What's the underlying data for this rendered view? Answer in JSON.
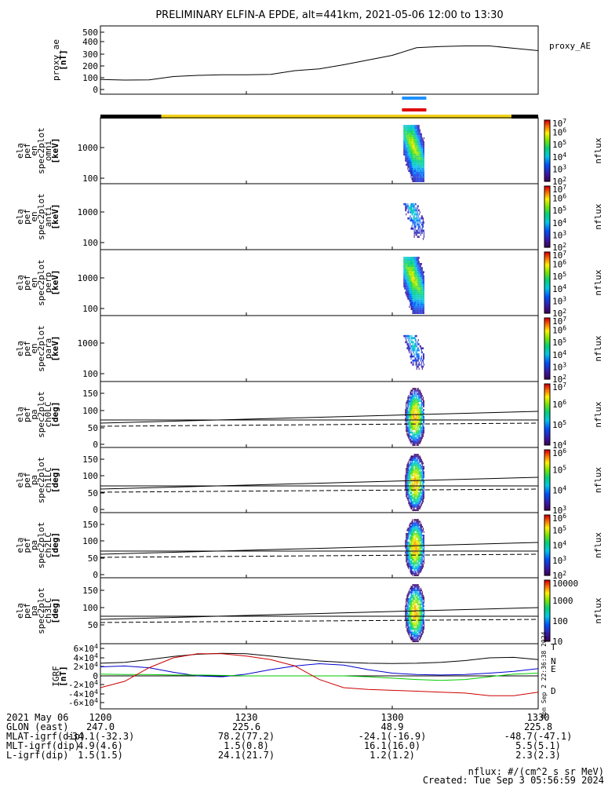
{
  "title": "PRELIMINARY ELFIN-A EPDE, alt=441km, 2021-05-06 12:00 to 13:30",
  "chart_data": {
    "type": "heatmap",
    "time_range": [
      "12:00",
      "13:30"
    ],
    "x_ticks": [
      "1200",
      "1230",
      "1300",
      "1330"
    ],
    "panels": [
      {
        "id": "proxy_ae",
        "type": "line",
        "ylabel_lines": [
          "proxy_ae",
          "[nT]"
        ],
        "yticks": [
          "500",
          "400",
          "300",
          "200",
          "100",
          "0"
        ],
        "ylim": [
          -20,
          540
        ],
        "legend": "proxy_AE",
        "x": [
          0,
          5,
          10,
          15,
          20,
          25,
          30,
          35,
          40,
          45,
          50,
          55,
          60,
          65,
          70,
          75,
          80,
          85,
          90
        ],
        "y": [
          85,
          80,
          82,
          110,
          120,
          125,
          125,
          128,
          160,
          175,
          210,
          250,
          290,
          355,
          365,
          370,
          370,
          350,
          330
        ]
      },
      {
        "id": "omni",
        "type": "spectrogram",
        "ylog": true,
        "ylabel_lines": [
          "ela",
          "pef",
          "en",
          "spec2plot",
          "omni",
          "[keV]"
        ],
        "yticks": [
          "1000",
          "100"
        ],
        "zticks": [
          "10^7",
          "10^6",
          "10^5",
          "10^4",
          "10^3",
          "10^2"
        ],
        "zlabel": "nflux"
      },
      {
        "id": "anti",
        "type": "spectrogram",
        "ylog": true,
        "ylabel_lines": [
          "ela",
          "pef",
          "en",
          "spec2plot",
          "anti",
          "[keV]"
        ],
        "yticks": [
          "1000",
          "100"
        ],
        "zticks": [
          "10^7",
          "10^6",
          "10^5",
          "10^4",
          "10^3",
          "10^2"
        ],
        "zlabel": "nflux"
      },
      {
        "id": "perp",
        "type": "spectrogram",
        "ylog": true,
        "ylabel_lines": [
          "ela",
          "pef",
          "en",
          "spec2plot",
          "perp",
          "[keV]"
        ],
        "yticks": [
          "1000",
          "100"
        ],
        "zticks": [
          "10^7",
          "10^6",
          "10^5",
          "10^4",
          "10^3",
          "10^2"
        ],
        "zlabel": "nflux"
      },
      {
        "id": "para",
        "type": "spectrogram",
        "ylog": true,
        "ylabel_lines": [
          "ela",
          "pef",
          "en",
          "spec2plot",
          "para",
          "[keV]"
        ],
        "yticks": [
          "1000",
          "100"
        ],
        "zticks": [
          "10^7",
          "10^6",
          "10^5",
          "10^4",
          "10^3",
          "10^2"
        ],
        "zlabel": "nflux"
      },
      {
        "id": "ch0",
        "type": "spectrogram",
        "ylabel_lines": [
          "ela",
          "pef",
          "pa",
          "spec2plot",
          "ch0LC",
          "[deg]"
        ],
        "yticks": [
          "150",
          "100",
          "50",
          "0"
        ],
        "zticks": [
          "10^7",
          "10^6",
          "10^5",
          "10^4"
        ],
        "zlabel": "nflux"
      },
      {
        "id": "ch1",
        "type": "spectrogram",
        "ylabel_lines": [
          "ela",
          "pef",
          "pa",
          "spec2plot",
          "ch1LC",
          "[deg]"
        ],
        "yticks": [
          "150",
          "100",
          "50",
          "0"
        ],
        "zticks": [
          "10^6",
          "10^5",
          "10^4",
          "10^3"
        ],
        "zlabel": "nflux"
      },
      {
        "id": "ch2",
        "type": "spectrogram",
        "ylabel_lines": [
          "ela",
          "pef",
          "pa",
          "spec2plot",
          "ch2LC",
          "[deg]"
        ],
        "yticks": [
          "150",
          "100",
          "50",
          "0"
        ],
        "zticks": [
          "10^6",
          "10^5",
          "10^4",
          "10^3",
          "10^2"
        ],
        "zlabel": "nflux"
      },
      {
        "id": "ch3",
        "type": "spectrogram",
        "ylabel_lines": [
          "ela",
          "pef",
          "pa",
          "spec2plot",
          "ch3LC",
          "[deg]"
        ],
        "yticks": [
          "150",
          "100",
          "50"
        ],
        "zticks": [
          "10000",
          "1000",
          "100",
          "10"
        ],
        "zlabel": "nflux"
      },
      {
        "id": "igrf",
        "type": "line",
        "ylabel_lines": [
          "IGRF",
          "[nT]"
        ],
        "yticks": [
          "6x10^4",
          "4x10^4",
          "2x10^4",
          "0",
          "-2x10^4",
          "-4x10^4",
          "-6x10^4"
        ],
        "ylim": [
          -65000,
          65000
        ],
        "x": [
          0,
          5,
          10,
          15,
          20,
          25,
          30,
          35,
          40,
          45,
          50,
          55,
          60,
          65,
          70,
          75,
          80,
          85,
          90
        ],
        "series": [
          {
            "name": "T",
            "color": "#000000",
            "y": [
              28000,
              30000,
              36000,
              43000,
              48000,
              50000,
              49000,
              44000,
              38000,
              33000,
              30000,
              28000,
              27500,
              28000,
              30000,
              34000,
              40000,
              41000,
              36000
            ]
          },
          {
            "name": "N",
            "color": "#0000cc",
            "y": [
              20000,
              22000,
              18000,
              8000,
              0,
              -2000,
              4000,
              14000,
              22000,
              27000,
              24000,
              14000,
              6000,
              3000,
              2000,
              3000,
              6000,
              10000,
              16000
            ]
          },
          {
            "name": "E",
            "color": "#00cc00",
            "y": [
              4000,
              3000,
              3000,
              2000,
              2000,
              1000,
              0,
              0,
              0,
              0,
              0,
              -2000,
              -5000,
              -8000,
              -10000,
              -8000,
              -2000,
              4000,
              6000
            ]
          },
          {
            "name": "D",
            "color": "#cc0000",
            "y": [
              -26000,
              -12000,
              18000,
              40000,
              49000,
              49000,
              44000,
              36000,
              22000,
              -8000,
              -26000,
              -30000,
              -32000,
              -34000,
              -36000,
              -38000,
              -44000,
              -44000,
              -36000
            ]
          }
        ]
      }
    ],
    "coverage": [
      62,
      67
    ]
  },
  "bottom": {
    "row0": {
      "label": "2021 May 06",
      "values": [
        "1200",
        "1230",
        "1300",
        "1330"
      ]
    },
    "row1": {
      "label": "GLON (east)",
      "values": [
        "247.0",
        "225.6",
        "48.9",
        "225.8"
      ]
    },
    "row2": {
      "label": "MLAT-igrf(dip)",
      "values": [
        "-34.1(-32.3)",
        "78.2(77.2)",
        "-24.1(-16.9)",
        "-48.7(-47.1)"
      ]
    },
    "row3": {
      "label": "MLT-igrf(dip)",
      "values": [
        "4.9(4.6)",
        "1.5(0.8)",
        "16.1(16.0)",
        "5.5(5.1)"
      ]
    },
    "row4": {
      "label": "L-igrf(dip)",
      "values": [
        "1.5(1.5)",
        "24.1(21.7)",
        "1.2(1.2)",
        "2.3(2.3)"
      ]
    },
    "note1": "nflux: #/(cm^2 s sr MeV)",
    "note2": "Created: Tue Sep  3 05:56:59 2024",
    "stamp": "Mon Sep  2 22:36:38 2024"
  }
}
